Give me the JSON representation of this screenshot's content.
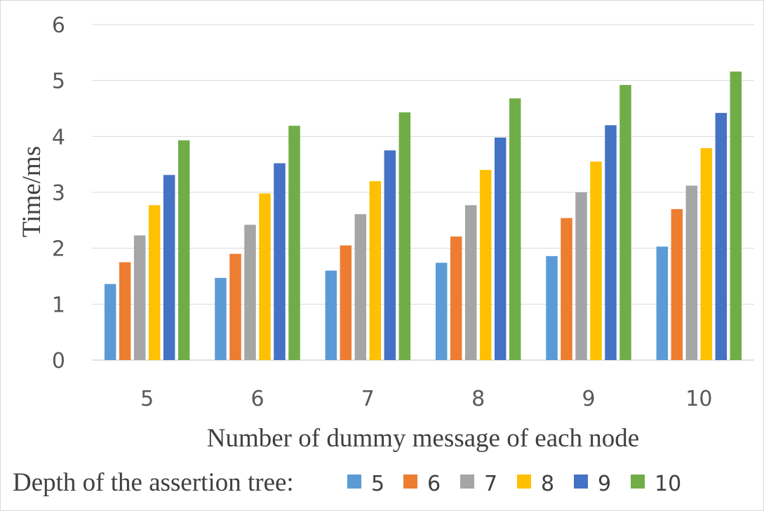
{
  "chart_data": {
    "type": "bar",
    "title": "",
    "xlabel": "Number of dummy message of each node",
    "ylabel": "Time/ms",
    "categories": [
      "5",
      "6",
      "7",
      "8",
      "9",
      "10"
    ],
    "yticks": [
      "0",
      "1",
      "2",
      "3",
      "4",
      "5",
      "6"
    ],
    "ylim": [
      0,
      6
    ],
    "grid": true,
    "legend": {
      "title": "Depth of the assertion tree:",
      "placement": "bottom"
    },
    "series": [
      {
        "name": "5",
        "color": "#5b9bd5",
        "values": [
          1.36,
          1.47,
          1.6,
          1.74,
          1.86,
          2.03
        ]
      },
      {
        "name": "6",
        "color": "#ed7d31",
        "values": [
          1.75,
          1.9,
          2.05,
          2.21,
          2.54,
          2.7
        ]
      },
      {
        "name": "7",
        "color": "#a5a5a5",
        "values": [
          2.23,
          2.42,
          2.61,
          2.77,
          3.0,
          3.12
        ]
      },
      {
        "name": "8",
        "color": "#ffc000",
        "values": [
          2.77,
          2.98,
          3.2,
          3.4,
          3.55,
          3.79
        ]
      },
      {
        "name": "9",
        "color": "#4472c4",
        "values": [
          3.31,
          3.52,
          3.75,
          3.98,
          4.2,
          4.42
        ]
      },
      {
        "name": "10",
        "color": "#70ad47",
        "values": [
          3.93,
          4.19,
          4.43,
          4.68,
          4.92,
          5.16
        ]
      }
    ]
  }
}
